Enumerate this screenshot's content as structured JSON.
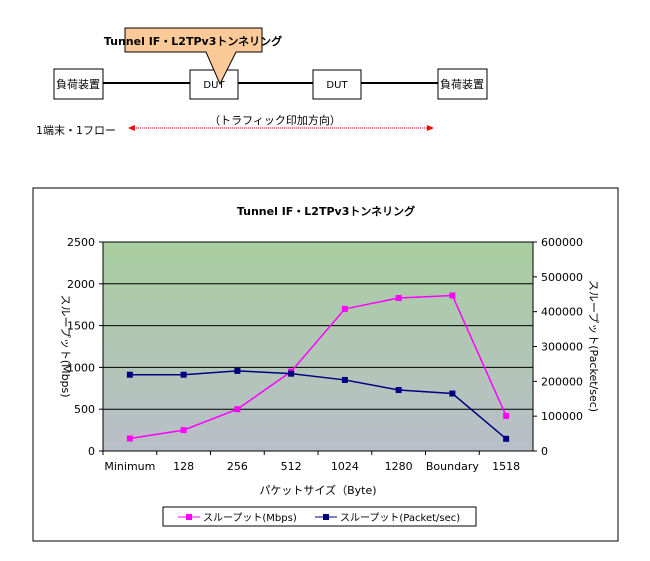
{
  "diagram": {
    "callout": "Tunnel IF・L2TPv3トンネリング",
    "left_device": "負荷装置",
    "right_device": "負荷装置",
    "dut1": "DUT",
    "dut2": "DUT",
    "traffic_label": "（トラフィック印加方向）",
    "flow_label": "1端末・1フロー",
    "callout_color": "#fcc999",
    "arrow_color": "#ff0000"
  },
  "chart_data": {
    "type": "line",
    "title": "Tunnel IF・L2TPv3トンネリング",
    "xlabel": "パケットサイズ（Byte)",
    "ylabel": "スループット(Mbps)",
    "y2label": "スループット(Packet/sec)",
    "categories": [
      "Minimum",
      "128",
      "256",
      "512",
      "1024",
      "1280",
      "Boundary",
      "1518"
    ],
    "ylim": [
      0,
      2500
    ],
    "yticks": [
      "0",
      "500",
      "1000",
      "1500",
      "2000",
      "2500"
    ],
    "y2lim": [
      0,
      600000
    ],
    "y2ticks": [
      "0",
      "100000",
      "200000",
      "300000",
      "400000",
      "500000",
      "600000"
    ],
    "grid": true,
    "legend_position": "bottom",
    "series": [
      {
        "name": "スループット(Mbps)",
        "axis": "left",
        "color": "#ff00ff",
        "values": [
          150,
          250,
          500,
          950,
          1700,
          1830,
          1860,
          420
        ]
      },
      {
        "name": "スループット(Packet/sec)",
        "axis": "right",
        "color": "#000080",
        "values": [
          219000,
          219000,
          230000,
          222000,
          204000,
          175000,
          165000,
          35000
        ]
      }
    ]
  }
}
